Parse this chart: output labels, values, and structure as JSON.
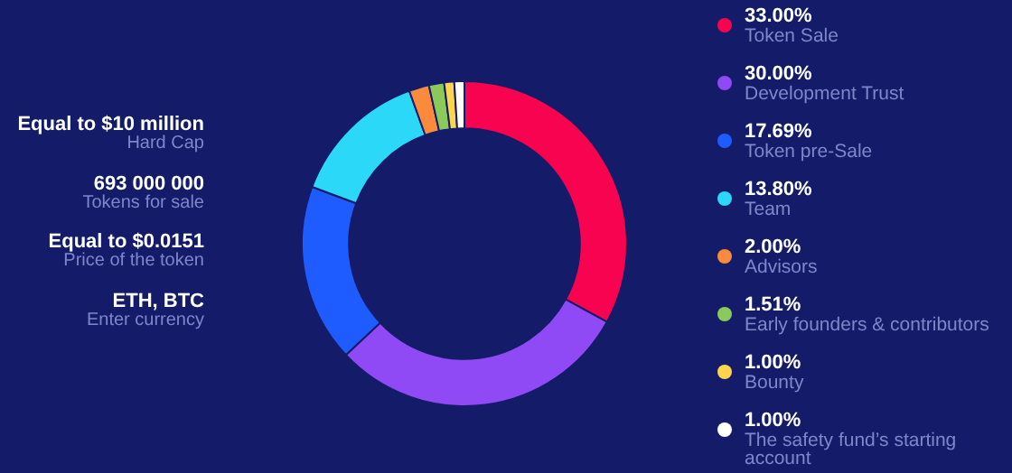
{
  "chart_data": {
    "type": "donut",
    "categories": [
      "Token Sale",
      "Development Trust",
      "Token pre-Sale",
      "Team",
      "Advisors",
      "Early founders & contributors",
      "Bounty",
      "The safety fund’s starting account"
    ],
    "values": [
      33.0,
      30.0,
      17.69,
      13.8,
      2.0,
      1.51,
      1.0,
      1.0
    ],
    "value_labels": [
      "33.00%",
      "30.00%",
      "17.69%",
      "13.80%",
      "2.00%",
      "1.51%",
      "1.00%",
      "1.00%"
    ],
    "colors": [
      "#f7034f",
      "#8f49f5",
      "#1f5cff",
      "#2bd8f7",
      "#fc8a3c",
      "#8bc95a",
      "#fdd54d",
      "#ffffff"
    ],
    "legend": "right",
    "annotations": [
      "Equal to $10 million",
      "Hard Cap",
      "693 000 000",
      "Tokens for sale",
      "Equal to $0.0151",
      "Price of the token",
      "ETH, BTC",
      "Enter currency"
    ]
  }
}
